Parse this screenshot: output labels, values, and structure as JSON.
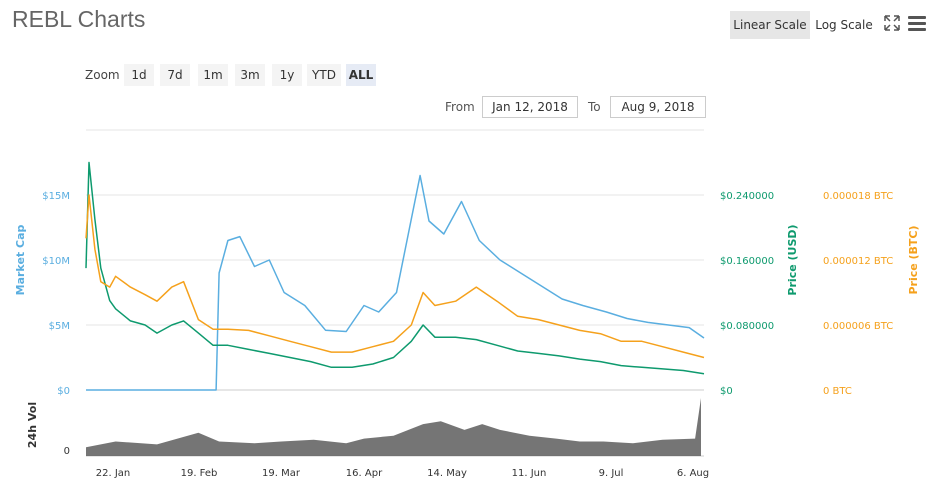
{
  "header": {
    "title": "REBL Charts",
    "linear_label": "Linear Scale",
    "log_label": "Log Scale"
  },
  "zoom": {
    "label": "Zoom",
    "options": [
      "1d",
      "7d",
      "1m",
      "3m",
      "1y",
      "YTD",
      "ALL"
    ],
    "active": "ALL"
  },
  "range": {
    "from_label": "From",
    "from_value": "Jan 12, 2018",
    "to_label": "To",
    "to_value": "Aug 9, 2018"
  },
  "colors": {
    "market_cap": "#5aaee0",
    "price_usd": "#0e9a6e",
    "price_btc": "#f5a11c",
    "volume": "#666666"
  },
  "chart_data": {
    "type": "line",
    "x_ticks": [
      "22. Jan",
      "19. Feb",
      "19. Mar",
      "16. Apr",
      "14. May",
      "11. Jun",
      "9. Jul",
      "6. Aug"
    ],
    "x_range": [
      "2018-01-12",
      "2018-08-09"
    ],
    "axes": {
      "market_cap": {
        "label": "Market Cap",
        "ticks": [
          "$0",
          "$5M",
          "$10M",
          "$15M"
        ],
        "range": [
          0,
          20000000
        ]
      },
      "price_usd": {
        "label": "Price (USD)",
        "ticks": [
          "$0",
          "$0.080000",
          "$0.160000",
          "$0.240000"
        ],
        "range": [
          0,
          0.32
        ]
      },
      "price_btc": {
        "label": "Price (BTC)",
        "ticks": [
          "0 BTC",
          "0.000006 BTC",
          "0.000012 BTC",
          "0.000018 BTC"
        ],
        "range": [
          0,
          2.4e-05
        ]
      },
      "volume": {
        "label": "24h Vol",
        "ticks": [
          "0"
        ]
      }
    },
    "series": [
      {
        "name": "Market Cap",
        "key": "market_cap",
        "points": [
          [
            "2018-01-12",
            0
          ],
          [
            "2018-01-22",
            0
          ],
          [
            "2018-02-05",
            0
          ],
          [
            "2018-02-19",
            0
          ],
          [
            "2018-02-25",
            0
          ],
          [
            "2018-02-26",
            9000000
          ],
          [
            "2018-03-01",
            11500000
          ],
          [
            "2018-03-05",
            11800000
          ],
          [
            "2018-03-10",
            9500000
          ],
          [
            "2018-03-15",
            10000000
          ],
          [
            "2018-03-20",
            7500000
          ],
          [
            "2018-03-27",
            6500000
          ],
          [
            "2018-04-03",
            4600000
          ],
          [
            "2018-04-10",
            4500000
          ],
          [
            "2018-04-16",
            6500000
          ],
          [
            "2018-04-21",
            6000000
          ],
          [
            "2018-04-27",
            7500000
          ],
          [
            "2018-05-01",
            12000000
          ],
          [
            "2018-05-05",
            16500000
          ],
          [
            "2018-05-08",
            13000000
          ],
          [
            "2018-05-13",
            12000000
          ],
          [
            "2018-05-19",
            14500000
          ],
          [
            "2018-05-25",
            11500000
          ],
          [
            "2018-06-01",
            10000000
          ],
          [
            "2018-06-08",
            9000000
          ],
          [
            "2018-06-15",
            8000000
          ],
          [
            "2018-06-22",
            7000000
          ],
          [
            "2018-06-29",
            6500000
          ],
          [
            "2018-07-07",
            6000000
          ],
          [
            "2018-07-14",
            5500000
          ],
          [
            "2018-07-21",
            5200000
          ],
          [
            "2018-07-28",
            5000000
          ],
          [
            "2018-08-04",
            4800000
          ],
          [
            "2018-08-09",
            4000000
          ]
        ]
      },
      {
        "name": "Price (USD)",
        "key": "price_usd",
        "points": [
          [
            "2018-01-12",
            0.15
          ],
          [
            "2018-01-13",
            0.28
          ],
          [
            "2018-01-15",
            0.21
          ],
          [
            "2018-01-17",
            0.15
          ],
          [
            "2018-01-20",
            0.11
          ],
          [
            "2018-01-22",
            0.1
          ],
          [
            "2018-01-27",
            0.085
          ],
          [
            "2018-02-01",
            0.08
          ],
          [
            "2018-02-05",
            0.07
          ],
          [
            "2018-02-10",
            0.08
          ],
          [
            "2018-02-14",
            0.085
          ],
          [
            "2018-02-19",
            0.07
          ],
          [
            "2018-02-24",
            0.055
          ],
          [
            "2018-03-01",
            0.055
          ],
          [
            "2018-03-08",
            0.05
          ],
          [
            "2018-03-15",
            0.045
          ],
          [
            "2018-03-22",
            0.04
          ],
          [
            "2018-03-29",
            0.035
          ],
          [
            "2018-04-05",
            0.028
          ],
          [
            "2018-04-12",
            0.028
          ],
          [
            "2018-04-19",
            0.032
          ],
          [
            "2018-04-26",
            0.04
          ],
          [
            "2018-05-02",
            0.06
          ],
          [
            "2018-05-06",
            0.08
          ],
          [
            "2018-05-10",
            0.065
          ],
          [
            "2018-05-17",
            0.065
          ],
          [
            "2018-05-24",
            0.062
          ],
          [
            "2018-05-31",
            0.055
          ],
          [
            "2018-06-07",
            0.048
          ],
          [
            "2018-06-14",
            0.045
          ],
          [
            "2018-06-21",
            0.042
          ],
          [
            "2018-06-28",
            0.038
          ],
          [
            "2018-07-05",
            0.035
          ],
          [
            "2018-07-12",
            0.03
          ],
          [
            "2018-07-19",
            0.028
          ],
          [
            "2018-07-26",
            0.026
          ],
          [
            "2018-08-02",
            0.024
          ],
          [
            "2018-08-09",
            0.02
          ]
        ]
      },
      {
        "name": "Price (BTC)",
        "key": "price_btc",
        "points": [
          [
            "2018-01-12",
            1.4e-05
          ],
          [
            "2018-01-13",
            1.8e-05
          ],
          [
            "2018-01-15",
            1.3e-05
          ],
          [
            "2018-01-17",
            1e-05
          ],
          [
            "2018-01-20",
            9.5e-06
          ],
          [
            "2018-01-22",
            1.05e-05
          ],
          [
            "2018-01-27",
            9.5e-06
          ],
          [
            "2018-02-01",
            8.8e-06
          ],
          [
            "2018-02-05",
            8.2e-06
          ],
          [
            "2018-02-10",
            9.5e-06
          ],
          [
            "2018-02-14",
            1e-05
          ],
          [
            "2018-02-19",
            6.5e-06
          ],
          [
            "2018-02-24",
            5.6e-06
          ],
          [
            "2018-03-01",
            5.6e-06
          ],
          [
            "2018-03-08",
            5.5e-06
          ],
          [
            "2018-03-15",
            5e-06
          ],
          [
            "2018-03-22",
            4.5e-06
          ],
          [
            "2018-03-29",
            4e-06
          ],
          [
            "2018-04-05",
            3.5e-06
          ],
          [
            "2018-04-12",
            3.5e-06
          ],
          [
            "2018-04-19",
            4e-06
          ],
          [
            "2018-04-26",
            4.5e-06
          ],
          [
            "2018-05-02",
            6e-06
          ],
          [
            "2018-05-06",
            9e-06
          ],
          [
            "2018-05-10",
            7.8e-06
          ],
          [
            "2018-05-17",
            8.2e-06
          ],
          [
            "2018-05-24",
            9.5e-06
          ],
          [
            "2018-05-31",
            8.2e-06
          ],
          [
            "2018-06-07",
            6.8e-06
          ],
          [
            "2018-06-14",
            6.5e-06
          ],
          [
            "2018-06-21",
            6e-06
          ],
          [
            "2018-06-28",
            5.5e-06
          ],
          [
            "2018-07-05",
            5.2e-06
          ],
          [
            "2018-07-12",
            4.5e-06
          ],
          [
            "2018-07-19",
            4.5e-06
          ],
          [
            "2018-07-26",
            4e-06
          ],
          [
            "2018-08-02",
            3.5e-06
          ],
          [
            "2018-08-09",
            3e-06
          ]
        ]
      },
      {
        "name": "24h Vol",
        "key": "volume",
        "points": [
          [
            "2018-01-12",
            0.15
          ],
          [
            "2018-01-22",
            0.25
          ],
          [
            "2018-02-05",
            0.2
          ],
          [
            "2018-02-19",
            0.4
          ],
          [
            "2018-02-26",
            0.25
          ],
          [
            "2018-03-10",
            0.22
          ],
          [
            "2018-03-19",
            0.25
          ],
          [
            "2018-03-30",
            0.28
          ],
          [
            "2018-04-10",
            0.22
          ],
          [
            "2018-04-16",
            0.3
          ],
          [
            "2018-04-26",
            0.35
          ],
          [
            "2018-05-06",
            0.55
          ],
          [
            "2018-05-12",
            0.6
          ],
          [
            "2018-05-20",
            0.45
          ],
          [
            "2018-05-26",
            0.55
          ],
          [
            "2018-06-01",
            0.45
          ],
          [
            "2018-06-11",
            0.35
          ],
          [
            "2018-06-20",
            0.3
          ],
          [
            "2018-06-28",
            0.25
          ],
          [
            "2018-07-06",
            0.25
          ],
          [
            "2018-07-16",
            0.22
          ],
          [
            "2018-07-26",
            0.28
          ],
          [
            "2018-08-06",
            0.3
          ],
          [
            "2018-08-08",
            1.0
          ]
        ]
      }
    ]
  }
}
